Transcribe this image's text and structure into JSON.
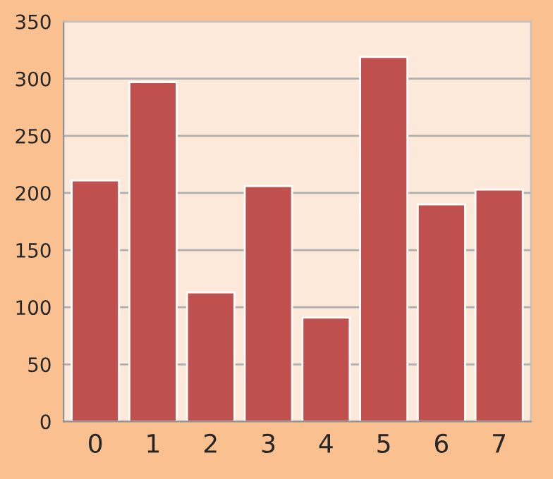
{
  "chart_data": {
    "type": "bar",
    "categories": [
      "0",
      "1",
      "2",
      "3",
      "4",
      "5",
      "6",
      "7"
    ],
    "values": [
      211,
      297,
      113,
      206,
      91,
      319,
      190,
      203
    ],
    "color": "#c0504d",
    "ylim": [
      0,
      350
    ],
    "yticks": [
      0,
      50,
      100,
      150,
      200,
      250,
      300,
      350
    ],
    "grid": "y"
  }
}
